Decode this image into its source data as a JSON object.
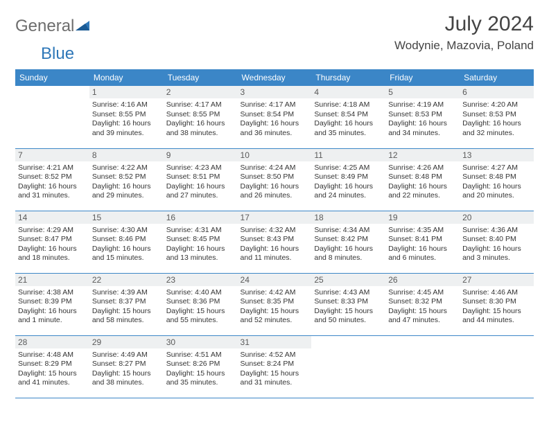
{
  "brand": {
    "part1": "General",
    "part2": "Blue"
  },
  "title": "July 2024",
  "location": "Wodynie, Mazovia, Poland",
  "colors": {
    "header_bg": "#3b86c7",
    "header_text": "#ffffff",
    "daynum_bg": "#eef0f1",
    "border": "#3b86c7",
    "logo_gray": "#6d6d6d",
    "logo_blue": "#2e77b8"
  },
  "weekdays": [
    "Sunday",
    "Monday",
    "Tuesday",
    "Wednesday",
    "Thursday",
    "Friday",
    "Saturday"
  ],
  "layout": {
    "first_weekday_index": 1,
    "days_in_month": 31
  },
  "days": {
    "1": {
      "sunrise": "4:16 AM",
      "sunset": "8:55 PM",
      "daylight": "16 hours and 39 minutes."
    },
    "2": {
      "sunrise": "4:17 AM",
      "sunset": "8:55 PM",
      "daylight": "16 hours and 38 minutes."
    },
    "3": {
      "sunrise": "4:17 AM",
      "sunset": "8:54 PM",
      "daylight": "16 hours and 36 minutes."
    },
    "4": {
      "sunrise": "4:18 AM",
      "sunset": "8:54 PM",
      "daylight": "16 hours and 35 minutes."
    },
    "5": {
      "sunrise": "4:19 AM",
      "sunset": "8:53 PM",
      "daylight": "16 hours and 34 minutes."
    },
    "6": {
      "sunrise": "4:20 AM",
      "sunset": "8:53 PM",
      "daylight": "16 hours and 32 minutes."
    },
    "7": {
      "sunrise": "4:21 AM",
      "sunset": "8:52 PM",
      "daylight": "16 hours and 31 minutes."
    },
    "8": {
      "sunrise": "4:22 AM",
      "sunset": "8:52 PM",
      "daylight": "16 hours and 29 minutes."
    },
    "9": {
      "sunrise": "4:23 AM",
      "sunset": "8:51 PM",
      "daylight": "16 hours and 27 minutes."
    },
    "10": {
      "sunrise": "4:24 AM",
      "sunset": "8:50 PM",
      "daylight": "16 hours and 26 minutes."
    },
    "11": {
      "sunrise": "4:25 AM",
      "sunset": "8:49 PM",
      "daylight": "16 hours and 24 minutes."
    },
    "12": {
      "sunrise": "4:26 AM",
      "sunset": "8:48 PM",
      "daylight": "16 hours and 22 minutes."
    },
    "13": {
      "sunrise": "4:27 AM",
      "sunset": "8:48 PM",
      "daylight": "16 hours and 20 minutes."
    },
    "14": {
      "sunrise": "4:29 AM",
      "sunset": "8:47 PM",
      "daylight": "16 hours and 18 minutes."
    },
    "15": {
      "sunrise": "4:30 AM",
      "sunset": "8:46 PM",
      "daylight": "16 hours and 15 minutes."
    },
    "16": {
      "sunrise": "4:31 AM",
      "sunset": "8:45 PM",
      "daylight": "16 hours and 13 minutes."
    },
    "17": {
      "sunrise": "4:32 AM",
      "sunset": "8:43 PM",
      "daylight": "16 hours and 11 minutes."
    },
    "18": {
      "sunrise": "4:34 AM",
      "sunset": "8:42 PM",
      "daylight": "16 hours and 8 minutes."
    },
    "19": {
      "sunrise": "4:35 AM",
      "sunset": "8:41 PM",
      "daylight": "16 hours and 6 minutes."
    },
    "20": {
      "sunrise": "4:36 AM",
      "sunset": "8:40 PM",
      "daylight": "16 hours and 3 minutes."
    },
    "21": {
      "sunrise": "4:38 AM",
      "sunset": "8:39 PM",
      "daylight": "16 hours and 1 minute."
    },
    "22": {
      "sunrise": "4:39 AM",
      "sunset": "8:37 PM",
      "daylight": "15 hours and 58 minutes."
    },
    "23": {
      "sunrise": "4:40 AM",
      "sunset": "8:36 PM",
      "daylight": "15 hours and 55 minutes."
    },
    "24": {
      "sunrise": "4:42 AM",
      "sunset": "8:35 PM",
      "daylight": "15 hours and 52 minutes."
    },
    "25": {
      "sunrise": "4:43 AM",
      "sunset": "8:33 PM",
      "daylight": "15 hours and 50 minutes."
    },
    "26": {
      "sunrise": "4:45 AM",
      "sunset": "8:32 PM",
      "daylight": "15 hours and 47 minutes."
    },
    "27": {
      "sunrise": "4:46 AM",
      "sunset": "8:30 PM",
      "daylight": "15 hours and 44 minutes."
    },
    "28": {
      "sunrise": "4:48 AM",
      "sunset": "8:29 PM",
      "daylight": "15 hours and 41 minutes."
    },
    "29": {
      "sunrise": "4:49 AM",
      "sunset": "8:27 PM",
      "daylight": "15 hours and 38 minutes."
    },
    "30": {
      "sunrise": "4:51 AM",
      "sunset": "8:26 PM",
      "daylight": "15 hours and 35 minutes."
    },
    "31": {
      "sunrise": "4:52 AM",
      "sunset": "8:24 PM",
      "daylight": "15 hours and 31 minutes."
    }
  },
  "labels": {
    "sunrise": "Sunrise:",
    "sunset": "Sunset:",
    "daylight": "Daylight:"
  }
}
